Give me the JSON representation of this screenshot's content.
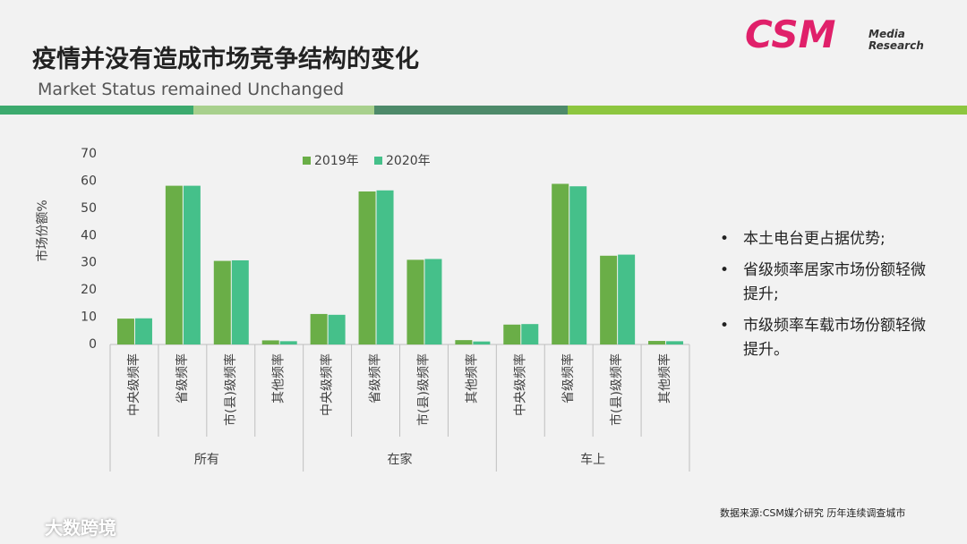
{
  "header": {
    "title": "疫情并没有造成市场竞争结构的变化",
    "subtitle": "Market Status remained Unchanged"
  },
  "logo": {
    "brand": "CSM",
    "line1": "Media",
    "line2": "Research"
  },
  "bullets": [
    "本土电台更占据优势;",
    "省级频率居家市场份额轻微提升;",
    "市级频率车载市场份额轻微提升。"
  ],
  "source": "数据来源:CSM媒介研究 历年连续调查城市",
  "watermark": "大数跨境",
  "chart_data": {
    "type": "bar",
    "y_label": "市场份额%",
    "categories": [
      "中央级频率",
      "省级频率",
      "市(县)级频率",
      "其他频率",
      "中央级频率",
      "省级频率",
      "市(县)级频率",
      "其他频率",
      "中央级频率",
      "省级频率",
      "市(县)级频率",
      "其他频率"
    ],
    "category_groups": [
      "所有",
      "在家",
      "车上"
    ],
    "series": [
      {
        "name": "2019年",
        "color": "#6aae47",
        "values": [
          9.5,
          58.3,
          30.7,
          1.5,
          11.2,
          56.2,
          31.1,
          1.6,
          7.3,
          59.0,
          32.6,
          1.3
        ]
      },
      {
        "name": "2020年",
        "color": "#45c08a",
        "values": [
          9.6,
          58.3,
          30.9,
          1.2,
          10.9,
          56.6,
          31.4,
          1.1,
          7.5,
          58.1,
          33.0,
          1.2
        ]
      }
    ],
    "ylim": [
      0,
      70
    ],
    "yticks": [
      0,
      10,
      20,
      30,
      40,
      50,
      60,
      70
    ],
    "grid": false,
    "legend": "top"
  }
}
